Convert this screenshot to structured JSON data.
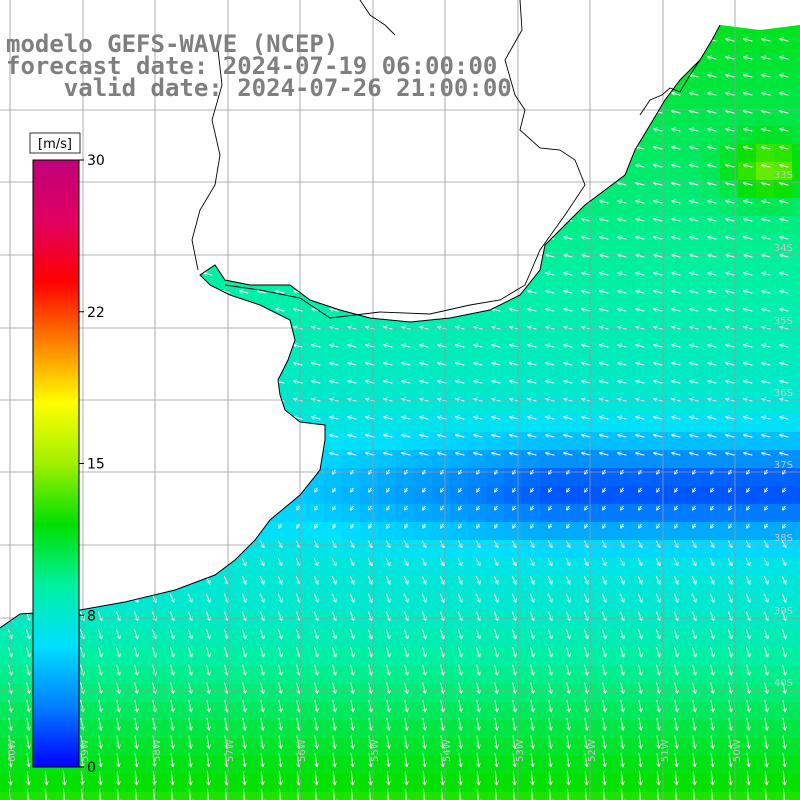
{
  "title": {
    "line1": "modelo GEFS-WAVE (NCEP)",
    "line2": "forecast date: 2024-07-19 06:00:00",
    "line3": "    valid date: 2024-07-26 21:00:00"
  },
  "colorbar": {
    "unit": "[m/s]",
    "min": 0,
    "max": 30,
    "ticks": [
      {
        "value": 30,
        "label": "30"
      },
      {
        "value": 22.5,
        "label": "22"
      },
      {
        "value": 15,
        "label": "15"
      },
      {
        "value": 7.5,
        "label": "8"
      },
      {
        "value": 0,
        "label": "0"
      }
    ],
    "colors": [
      "#0000ff",
      "#0080ff",
      "#00e0ff",
      "#00f0a0",
      "#00e000",
      "#a0f000",
      "#ffff00",
      "#ff8000",
      "#ff0000",
      "#e00060",
      "#c0007a"
    ]
  },
  "latitude_labels": [
    "33S",
    "34S",
    "35S",
    "36S",
    "37S",
    "38S",
    "39S",
    "40S"
  ],
  "longitude_labels": [
    "60W",
    "59W",
    "58W",
    "57W",
    "56W",
    "55W",
    "54W",
    "53W",
    "52W",
    "51W",
    "50W"
  ],
  "colors": {
    "land": "#ffffff",
    "coastline": "#000000",
    "grid": "#9a9a9a",
    "arrows": "#ffffff",
    "title_text": "#7f7f7f"
  }
}
